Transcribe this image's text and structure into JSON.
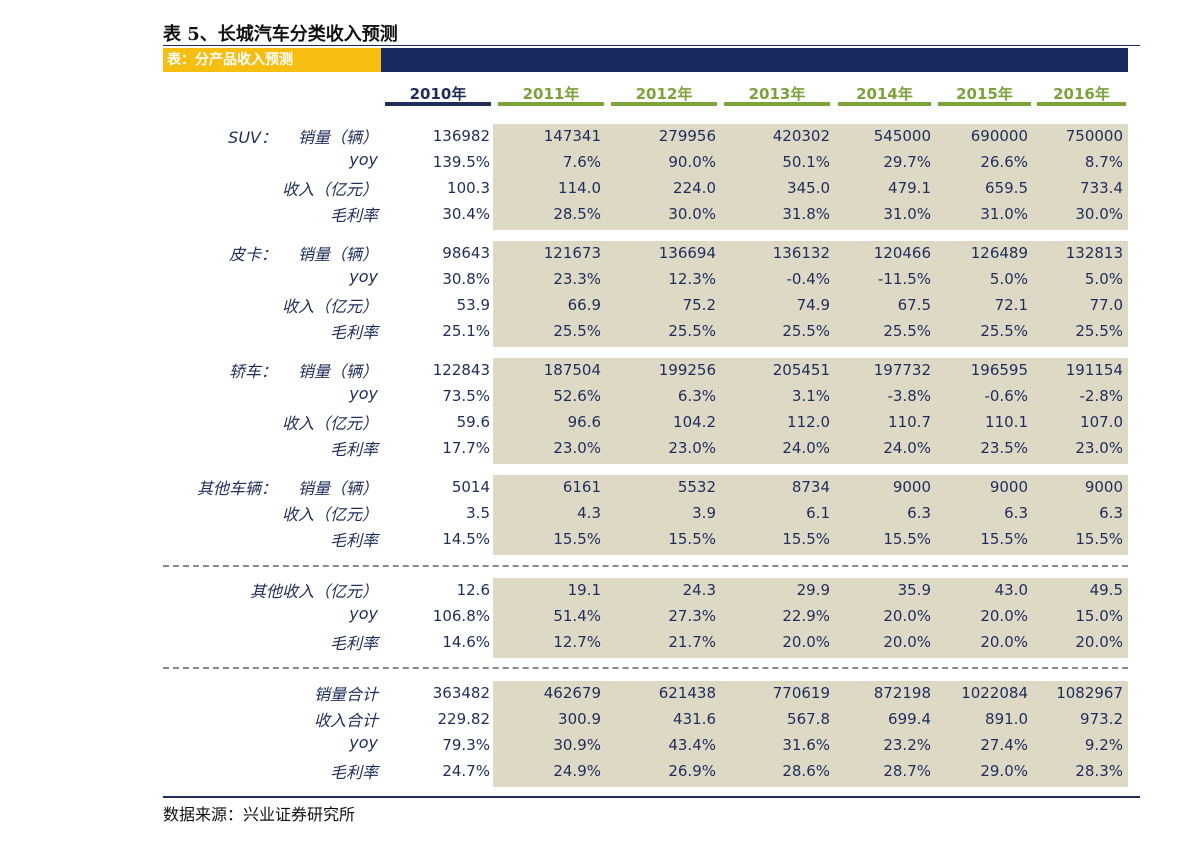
{
  "title": "表 5、长城汽车分类收入预测",
  "table_header": "表：分产品收入预测",
  "years": [
    "2010年",
    "2011年",
    "2012年",
    "2013年",
    "2014年",
    "2015年",
    "2016年"
  ],
  "colors": {
    "year_2010": "#1f2d5c",
    "year_forecast": "#7aa33a",
    "shade": "#ddd9c4",
    "header_gold": "#f7be12",
    "header_navy": "#18295e"
  },
  "groups": [
    {
      "name": "SUV：",
      "rows": [
        {
          "label": "销量（辆）",
          "values": [
            "136982",
            "147341",
            "279956",
            "420302",
            "545000",
            "690000",
            "750000"
          ]
        },
        {
          "label": "yoy",
          "values": [
            "139.5%",
            "7.6%",
            "90.0%",
            "50.1%",
            "29.7%",
            "26.6%",
            "8.7%"
          ]
        },
        {
          "label": "收入（亿元）",
          "values": [
            "100.3",
            "114.0",
            "224.0",
            "345.0",
            "479.1",
            "659.5",
            "733.4"
          ]
        },
        {
          "label": "毛利率",
          "values": [
            "30.4%",
            "28.5%",
            "30.0%",
            "31.8%",
            "31.0%",
            "31.0%",
            "30.0%"
          ]
        }
      ]
    },
    {
      "name": "皮卡：",
      "rows": [
        {
          "label": "销量（辆）",
          "values": [
            "98643",
            "121673",
            "136694",
            "136132",
            "120466",
            "126489",
            "132813"
          ]
        },
        {
          "label": "yoy",
          "values": [
            "30.8%",
            "23.3%",
            "12.3%",
            "-0.4%",
            "-11.5%",
            "5.0%",
            "5.0%"
          ]
        },
        {
          "label": "收入（亿元）",
          "values": [
            "53.9",
            "66.9",
            "75.2",
            "74.9",
            "67.5",
            "72.1",
            "77.0"
          ]
        },
        {
          "label": "毛利率",
          "values": [
            "25.1%",
            "25.5%",
            "25.5%",
            "25.5%",
            "25.5%",
            "25.5%",
            "25.5%"
          ]
        }
      ]
    },
    {
      "name": "轿车：",
      "rows": [
        {
          "label": "销量（辆）",
          "values": [
            "122843",
            "187504",
            "199256",
            "205451",
            "197732",
            "196595",
            "191154"
          ]
        },
        {
          "label": "yoy",
          "values": [
            "73.5%",
            "52.6%",
            "6.3%",
            "3.1%",
            "-3.8%",
            "-0.6%",
            "-2.8%"
          ]
        },
        {
          "label": "收入（亿元）",
          "values": [
            "59.6",
            "96.6",
            "104.2",
            "112.0",
            "110.7",
            "110.1",
            "107.0"
          ]
        },
        {
          "label": "毛利率",
          "values": [
            "17.7%",
            "23.0%",
            "23.0%",
            "24.0%",
            "24.0%",
            "23.5%",
            "23.0%"
          ]
        }
      ]
    },
    {
      "name": "其他车辆：",
      "rows": [
        {
          "label": "销量（辆）",
          "values": [
            "5014",
            "6161",
            "5532",
            "8734",
            "9000",
            "9000",
            "9000"
          ]
        },
        {
          "label": "收入（亿元）",
          "values": [
            "3.5",
            "4.3",
            "3.9",
            "6.1",
            "6.3",
            "6.3",
            "6.3"
          ]
        },
        {
          "label": "毛利率",
          "values": [
            "14.5%",
            "15.5%",
            "15.5%",
            "15.5%",
            "15.5%",
            "15.5%",
            "15.5%"
          ]
        }
      ]
    },
    {
      "name": "",
      "rows": [
        {
          "label": "其他收入（亿元）",
          "values": [
            "12.6",
            "19.1",
            "24.3",
            "29.9",
            "35.9",
            "43.0",
            "49.5"
          ]
        },
        {
          "label": "yoy",
          "values": [
            "106.8%",
            "51.4%",
            "27.3%",
            "22.9%",
            "20.0%",
            "20.0%",
            "15.0%"
          ]
        },
        {
          "label": "毛利率",
          "values": [
            "14.6%",
            "12.7%",
            "21.7%",
            "20.0%",
            "20.0%",
            "20.0%",
            "20.0%"
          ]
        }
      ]
    },
    {
      "name": "",
      "rows": [
        {
          "label": "销量合计",
          "values": [
            "363482",
            "462679",
            "621438",
            "770619",
            "872198",
            "1022084",
            "1082967"
          ]
        },
        {
          "label": "收入合计",
          "values": [
            "229.82",
            "300.9",
            "431.6",
            "567.8",
            "699.4",
            "891.0",
            "973.2"
          ]
        },
        {
          "label": "yoy",
          "values": [
            "79.3%",
            "30.9%",
            "43.4%",
            "31.6%",
            "23.2%",
            "27.4%",
            "9.2%"
          ]
        },
        {
          "label": "毛利率",
          "values": [
            "24.7%",
            "24.9%",
            "26.9%",
            "28.6%",
            "28.7%",
            "29.0%",
            "28.3%"
          ]
        }
      ]
    }
  ],
  "source": "数据来源：兴业证券研究所"
}
